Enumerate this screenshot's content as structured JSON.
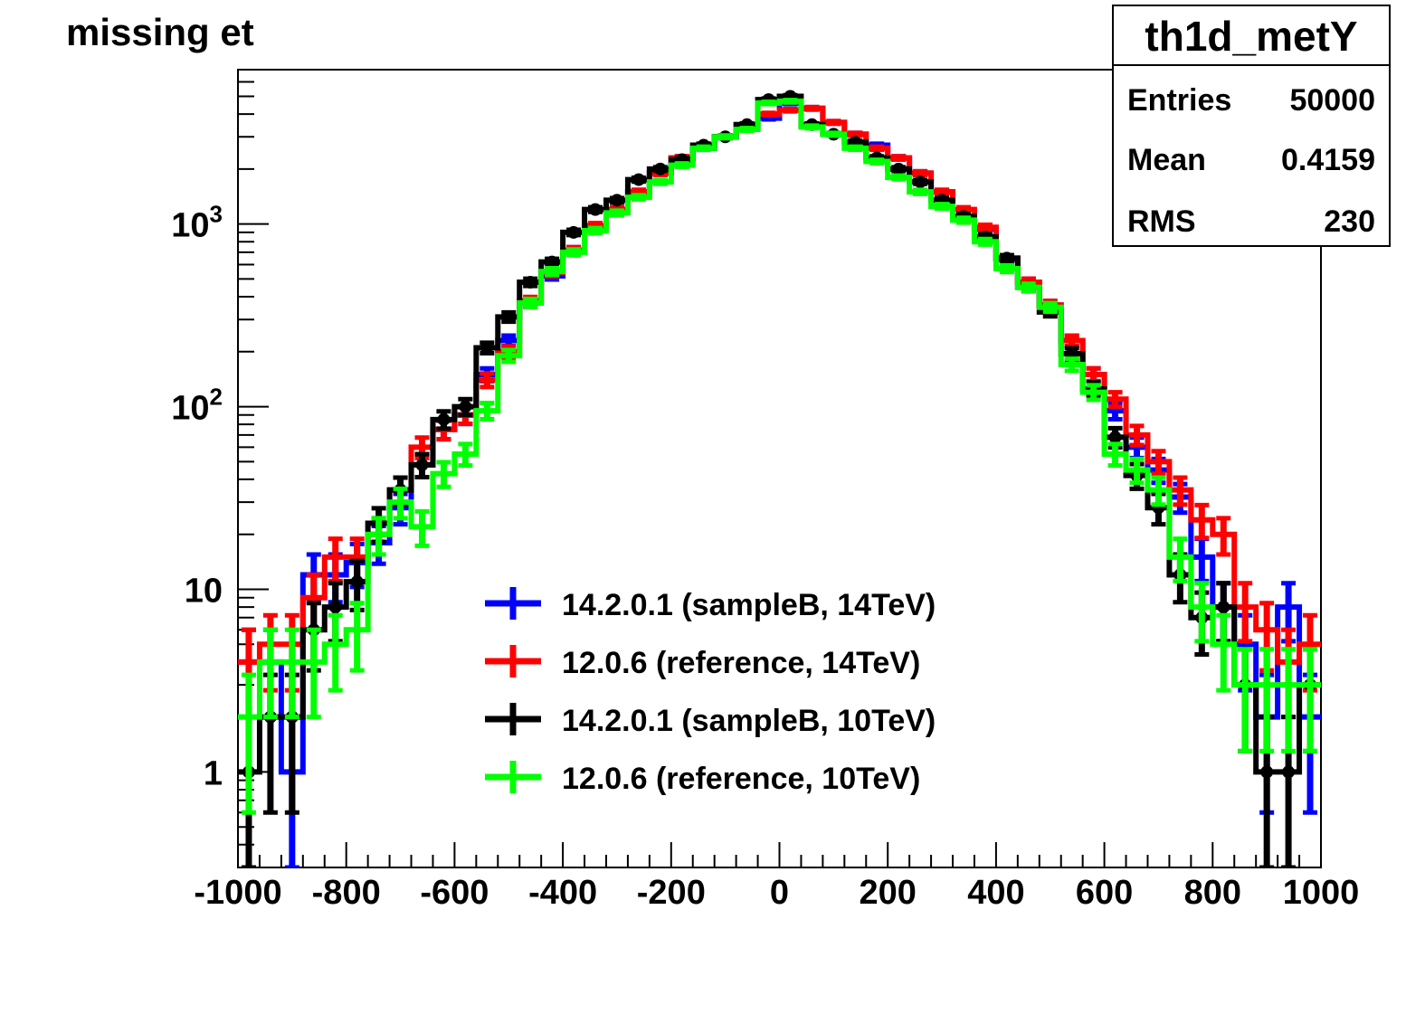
{
  "chart_data": {
    "type": "line",
    "title": "missing et",
    "xlabel": "",
    "ylabel": "",
    "xlim": [
      -1000,
      1000
    ],
    "ylim": [
      0.3,
      7000
    ],
    "y_scale": "log",
    "bin_width": 40,
    "x_ticks": [
      "-1000",
      "-800",
      "-600",
      "-400",
      "-200",
      "0",
      "200",
      "400",
      "600",
      "800",
      "1000"
    ],
    "y_ticks": [
      {
        "base": "1",
        "exp": ""
      },
      {
        "base": "10",
        "exp": ""
      },
      {
        "base": "10",
        "exp": "2"
      },
      {
        "base": "10",
        "exp": "3"
      }
    ],
    "stats_box": {
      "name": "th1d_metY",
      "rows": [
        {
          "label": "Entries",
          "value": "50000"
        },
        {
          "label": "Mean",
          "value": "0.4159"
        },
        {
          "label": "RMS",
          "value": "230"
        }
      ]
    },
    "series": [
      {
        "name": "14.2.0.1 (sampleB, 14TeV)",
        "color": "#0000ff",
        "x": [
          -980,
          -940,
          -900,
          -860,
          -820,
          -780,
          -740,
          -700,
          -660,
          -620,
          -580,
          -540,
          -500,
          -460,
          -420,
          -380,
          -340,
          -300,
          -260,
          -220,
          -180,
          -140,
          -100,
          -60,
          -20,
          20,
          60,
          100,
          140,
          180,
          220,
          260,
          300,
          340,
          380,
          420,
          460,
          500,
          540,
          580,
          620,
          660,
          700,
          740,
          780,
          820,
          860,
          900,
          940,
          980
        ],
        "values": [
          4,
          4,
          1,
          12,
          12,
          14,
          18,
          28,
          48,
          75,
          90,
          150,
          230,
          370,
          520,
          720,
          950,
          1200,
          1500,
          1900,
          2300,
          2600,
          3000,
          3300,
          3800,
          4600,
          4300,
          3600,
          3100,
          2700,
          2300,
          1900,
          1500,
          1100,
          940,
          640,
          480,
          360,
          230,
          150,
          95,
          60,
          45,
          32,
          15,
          8,
          5,
          2,
          8,
          2
        ],
        "errors": [
          2,
          2,
          1,
          3.5,
          3.5,
          3.7,
          4.2,
          5.3,
          6.9,
          8.7,
          9.5,
          12,
          15,
          19,
          23,
          27,
          31,
          35,
          39,
          44,
          48,
          51,
          55,
          57,
          62,
          68,
          66,
          60,
          56,
          52,
          48,
          44,
          39,
          33,
          31,
          25,
          22,
          19,
          15,
          12,
          9.7,
          7.7,
          6.7,
          5.7,
          3.9,
          2.8,
          2.2,
          1.4,
          2.8,
          1.4
        ]
      },
      {
        "name": "12.0.6 (reference, 14TeV)",
        "color": "#ff0000",
        "x": [
          -980,
          -940,
          -900,
          -860,
          -820,
          -780,
          -740,
          -700,
          -660,
          -620,
          -580,
          -540,
          -500,
          -460,
          -420,
          -380,
          -340,
          -300,
          -260,
          -220,
          -180,
          -140,
          -100,
          -60,
          -20,
          20,
          60,
          100,
          140,
          180,
          220,
          260,
          300,
          340,
          380,
          420,
          460,
          500,
          540,
          580,
          620,
          660,
          700,
          740,
          780,
          820,
          860,
          900,
          940,
          980
        ],
        "values": [
          4,
          5,
          5,
          9,
          15,
          15,
          20,
          35,
          60,
          75,
          90,
          140,
          200,
          380,
          540,
          720,
          980,
          1200,
          1500,
          1900,
          2300,
          2700,
          3000,
          3300,
          4000,
          4200,
          4300,
          3600,
          3100,
          2600,
          2300,
          1900,
          1500,
          1200,
          960,
          650,
          480,
          360,
          230,
          150,
          110,
          70,
          50,
          35,
          24,
          20,
          8,
          6,
          4,
          5
        ],
        "errors": [
          2,
          2.2,
          2.2,
          3,
          3.9,
          3.9,
          4.5,
          5.9,
          7.7,
          8.7,
          9.5,
          12,
          14,
          19,
          23,
          27,
          31,
          35,
          39,
          44,
          48,
          52,
          55,
          57,
          63,
          65,
          66,
          60,
          56,
          51,
          48,
          44,
          39,
          35,
          31,
          25,
          22,
          19,
          15,
          12,
          10,
          8.4,
          7.1,
          5.9,
          4.9,
          4.5,
          2.8,
          2.4,
          2,
          2.2
        ]
      },
      {
        "name": "14.2.0.1 (sampleB, 10TeV)",
        "color": "#000000",
        "x": [
          -980,
          -940,
          -900,
          -860,
          -820,
          -780,
          -740,
          -700,
          -660,
          -620,
          -580,
          -540,
          -500,
          -460,
          -420,
          -380,
          -340,
          -300,
          -260,
          -220,
          -180,
          -140,
          -100,
          -60,
          -20,
          20,
          60,
          100,
          140,
          180,
          220,
          260,
          300,
          340,
          380,
          420,
          460,
          500,
          540,
          580,
          620,
          660,
          700,
          740,
          780,
          820,
          860,
          900,
          940,
          980
        ],
        "values": [
          1,
          2,
          2,
          6,
          8,
          11,
          23,
          35,
          48,
          85,
          100,
          210,
          310,
          480,
          620,
          900,
          1200,
          1350,
          1750,
          2000,
          2250,
          2700,
          3000,
          3500,
          4800,
          5000,
          3500,
          3100,
          2800,
          2300,
          2000,
          1700,
          1350,
          1100,
          850,
          650,
          450,
          330,
          195,
          125,
          68,
          42,
          28,
          12,
          7,
          8,
          3,
          1,
          1,
          3
        ],
        "errors": [
          1,
          1.4,
          1.4,
          2.4,
          2.8,
          3.3,
          4.8,
          5.9,
          6.9,
          9.2,
          10,
          14,
          18,
          22,
          25,
          30,
          35,
          37,
          42,
          45,
          47,
          52,
          55,
          59,
          69,
          71,
          59,
          56,
          53,
          48,
          45,
          41,
          37,
          33,
          29,
          25,
          21,
          18,
          14,
          11,
          8.2,
          6.5,
          5.3,
          3.5,
          2.6,
          2.8,
          1.7,
          1,
          1,
          1.7
        ]
      },
      {
        "name": "12.0.6 (reference, 10TeV)",
        "color": "#00ff00",
        "x": [
          -980,
          -940,
          -900,
          -860,
          -820,
          -780,
          -740,
          -700,
          -660,
          -620,
          -580,
          -540,
          -500,
          -460,
          -420,
          -380,
          -340,
          -300,
          -260,
          -220,
          -180,
          -140,
          -100,
          -60,
          -20,
          20,
          60,
          100,
          140,
          180,
          220,
          260,
          300,
          340,
          380,
          420,
          460,
          500,
          540,
          580,
          620,
          660,
          700,
          740,
          780,
          820,
          860,
          900,
          940,
          980
        ],
        "values": [
          2,
          4,
          4,
          4,
          5,
          6,
          20,
          30,
          22,
          43,
          55,
          95,
          190,
          370,
          550,
          700,
          920,
          1150,
          1400,
          1700,
          2100,
          2600,
          3000,
          3300,
          4600,
          4700,
          3400,
          3100,
          2600,
          2200,
          1800,
          1500,
          1250,
          1050,
          800,
          570,
          450,
          350,
          170,
          120,
          55,
          45,
          35,
          15,
          8,
          5,
          3,
          3,
          3,
          3
        ],
        "errors": [
          1.4,
          2,
          2,
          2,
          2.2,
          2.4,
          4.5,
          5.5,
          4.7,
          6.6,
          7.4,
          9.7,
          14,
          19,
          23,
          26,
          30,
          34,
          37,
          41,
          46,
          51,
          55,
          57,
          68,
          69,
          58,
          56,
          51,
          47,
          42,
          39,
          35,
          32,
          28,
          24,
          21,
          19,
          13,
          11,
          7.4,
          6.7,
          5.9,
          3.9,
          2.8,
          2.2,
          1.7,
          1.7,
          1.7,
          1.7
        ]
      }
    ],
    "legend_placement": "center-bottom"
  }
}
